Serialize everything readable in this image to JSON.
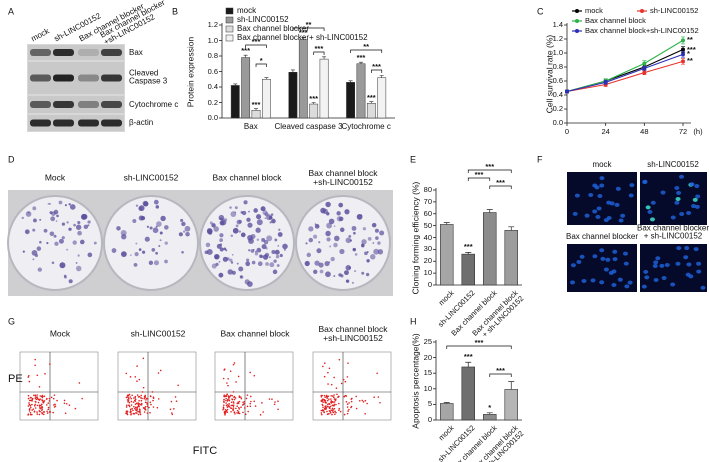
{
  "figure_panels": {
    "A": {
      "label": "A",
      "columns": [
        "mock",
        "sh-LINC00152",
        "Bax channel blocker",
        "Bax channel blocker\n+sh-LINC00152"
      ],
      "rows": [
        "Bax",
        "Cleaved\nCaspase 3",
        "Cytochrome c",
        "β-actin"
      ]
    },
    "D": {
      "label": "D",
      "columns": [
        "Mock",
        "sh-LINC00152",
        "Bax channel block",
        "Bax channel block\n+sh-LINC00152"
      ]
    },
    "F": {
      "label": "F",
      "images": [
        "mock",
        "sh-LINC00152",
        "Bax channel blocker",
        "Bax channel blocker\n+ sh-LINC00152"
      ]
    },
    "G": {
      "label": "G",
      "columns": [
        "Mock",
        "sh-LINC00152",
        "Bax channel block",
        "Bax channel block\n+sh-LINC00152"
      ],
      "y_label": "PE",
      "x_label": "FITC"
    }
  },
  "chart_data": [
    {
      "panel": "B",
      "type": "bar",
      "ylabel": "Protein expression",
      "categories": [
        "Bax",
        "Cleaved caspase 3",
        "Cytochrome c"
      ],
      "series": [
        {
          "name": "mock",
          "color": "#1a1a1a",
          "values": [
            0.42,
            0.59,
            0.46
          ],
          "errors": [
            0.02,
            0.03,
            0.02
          ]
        },
        {
          "name": "sh-LINC00152",
          "color": "#9a9a9a",
          "values": [
            0.78,
            1.01,
            0.7
          ],
          "errors": [
            0.03,
            0.03,
            0.02
          ]
        },
        {
          "name": "Bax channel blocker",
          "color": "#dcdcdc",
          "values": [
            0.1,
            0.18,
            0.19
          ],
          "errors": [
            0.02,
            0.02,
            0.02
          ]
        },
        {
          "name": "Bax channel blocker+ sh-LINC00152",
          "color": "#f2f2f2",
          "values": [
            0.5,
            0.76,
            0.52
          ],
          "errors": [
            0.02,
            0.03,
            0.03
          ]
        }
      ],
      "ylim": [
        0,
        1.2
      ],
      "yticks": [
        {
          "value": 0,
          "label": "0.0"
        },
        {
          "value": 0.2,
          "label": "0.2"
        },
        {
          "value": 0.4,
          "label": "0.4"
        },
        {
          "value": 0.6,
          "label": "0.6"
        },
        {
          "value": 0.8,
          "label": "0.8"
        },
        {
          "value": 1,
          "label": "1.0"
        },
        {
          "value": 1.2,
          "label": "1.2"
        }
      ],
      "annotations": [
        "***",
        "***",
        "***",
        "*",
        "***",
        "***",
        "**",
        "***",
        "***",
        "***",
        "**",
        "***"
      ]
    },
    {
      "panel": "C",
      "type": "line",
      "ylabel": "Cell survival rate (%)",
      "xlabel": "(h)",
      "x": [
        0,
        24,
        48,
        72
      ],
      "xlim": [
        0,
        72
      ],
      "xticks": [
        0,
        24,
        48,
        72
      ],
      "series": [
        {
          "name": "mock",
          "color": "#000000",
          "values": [
            0.45,
            0.6,
            0.8,
            1.05
          ],
          "errors": [
            0.02,
            0.03,
            0.04,
            0.04
          ]
        },
        {
          "name": "sh-LINC00152",
          "color": "#e8322c",
          "values": [
            0.45,
            0.55,
            0.72,
            0.88
          ],
          "errors": [
            0.02,
            0.03,
            0.03,
            0.04
          ]
        },
        {
          "name": "Bax channel block",
          "color": "#2db34a",
          "values": [
            0.45,
            0.6,
            0.85,
            1.18
          ],
          "errors": [
            0.02,
            0.03,
            0.04,
            0.05
          ]
        },
        {
          "name": "Bax channel block+sh-LINC00152",
          "color": "#2a2fb8",
          "values": [
            0.45,
            0.58,
            0.78,
            0.98
          ],
          "errors": [
            0.02,
            0.03,
            0.03,
            0.04
          ]
        }
      ],
      "ylim": [
        0,
        1.4
      ],
      "yticks": [
        {
          "value": 0,
          "label": "0.0"
        },
        {
          "value": 0.2,
          "label": "0.2"
        },
        {
          "value": 0.4,
          "label": "0.4"
        },
        {
          "value": 0.6,
          "label": "0.6"
        },
        {
          "value": 0.8,
          "label": "0.8"
        },
        {
          "value": 1,
          "label": "1.0"
        },
        {
          "value": 1.2,
          "label": "1.2"
        },
        {
          "value": 1.4,
          "label": "1.4"
        }
      ],
      "annotations": [
        "**",
        "***",
        "*",
        "**"
      ]
    },
    {
      "panel": "E",
      "type": "bar",
      "ylabel": "Cloning forming efficiency (%)",
      "categories": [
        "mock",
        "sh-LINC00152",
        "Bax channel block",
        "Bax channel block\n+ sh-LINC00152"
      ],
      "values": [
        51,
        26,
        61,
        46
      ],
      "errors": [
        1.5,
        1.5,
        2.5,
        3
      ],
      "colors": [
        "#a6a6a6",
        "#6f6f6f",
        "#8c8c8c",
        "#9d9d9d"
      ],
      "ylim": [
        0,
        80
      ],
      "yticks": [
        0,
        10,
        20,
        30,
        40,
        50,
        60,
        70,
        80
      ],
      "annotations": [
        "***",
        "***",
        "***",
        "***"
      ]
    },
    {
      "panel": "H",
      "type": "bar",
      "ylabel": "Apoptosis percentage(%)",
      "categories": [
        "mock",
        "sh-LINC00152",
        "Bax channel block",
        "Bax channel block\n+sh-LINC00152"
      ],
      "values": [
        5.3,
        17,
        1.8,
        9.8
      ],
      "errors": [
        0.3,
        1.5,
        0.5,
        2.5
      ],
      "colors": [
        "#a6a6a6",
        "#6f6f6f",
        "#8c8c8c",
        "#b5b5b5"
      ],
      "ylim": [
        0,
        25
      ],
      "yticks": [
        0,
        5,
        10,
        15,
        20,
        25
      ],
      "annotations": [
        "***",
        "*",
        "***",
        "***"
      ]
    }
  ]
}
